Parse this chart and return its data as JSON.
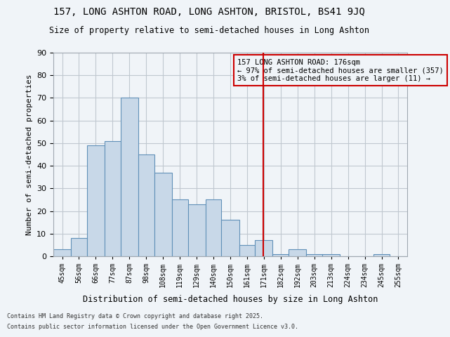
{
  "title1": "157, LONG ASHTON ROAD, LONG ASHTON, BRISTOL, BS41 9JQ",
  "title2": "Size of property relative to semi-detached houses in Long Ashton",
  "xlabel": "Distribution of semi-detached houses by size in Long Ashton",
  "ylabel": "Number of semi-detached properties",
  "footer1": "Contains HM Land Registry data © Crown copyright and database right 2025.",
  "footer2": "Contains public sector information licensed under the Open Government Licence v3.0.",
  "bin_labels": [
    "45sqm",
    "56sqm",
    "66sqm",
    "77sqm",
    "87sqm",
    "98sqm",
    "108sqm",
    "119sqm",
    "129sqm",
    "140sqm",
    "150sqm",
    "161sqm",
    "171sqm",
    "182sqm",
    "192sqm",
    "203sqm",
    "213sqm",
    "224sqm",
    "234sqm",
    "245sqm",
    "255sqm"
  ],
  "bin_edges": [
    45,
    56,
    66,
    77,
    87,
    98,
    108,
    119,
    129,
    140,
    150,
    161,
    171,
    182,
    192,
    203,
    213,
    224,
    234,
    245,
    255,
    266
  ],
  "counts": [
    3,
    8,
    49,
    51,
    70,
    45,
    37,
    25,
    23,
    25,
    16,
    5,
    7,
    1,
    3,
    1,
    1,
    0,
    0,
    1,
    0
  ],
  "property_size": 176,
  "annotation_title": "157 LONG ASHTON ROAD: 176sqm",
  "annotation_line1": "← 97% of semi-detached houses are smaller (357)",
  "annotation_line2": "3% of semi-detached houses are larger (11) →",
  "bar_facecolor": "#c8d8e8",
  "bar_edgecolor": "#6090b8",
  "vline_color": "#cc0000",
  "annotation_box_edgecolor": "#cc0000",
  "grid_color": "#c0c8d0",
  "bg_color": "#f0f4f8",
  "ylim": [
    0,
    90
  ],
  "yticks": [
    0,
    10,
    20,
    30,
    40,
    50,
    60,
    70,
    80,
    90
  ]
}
